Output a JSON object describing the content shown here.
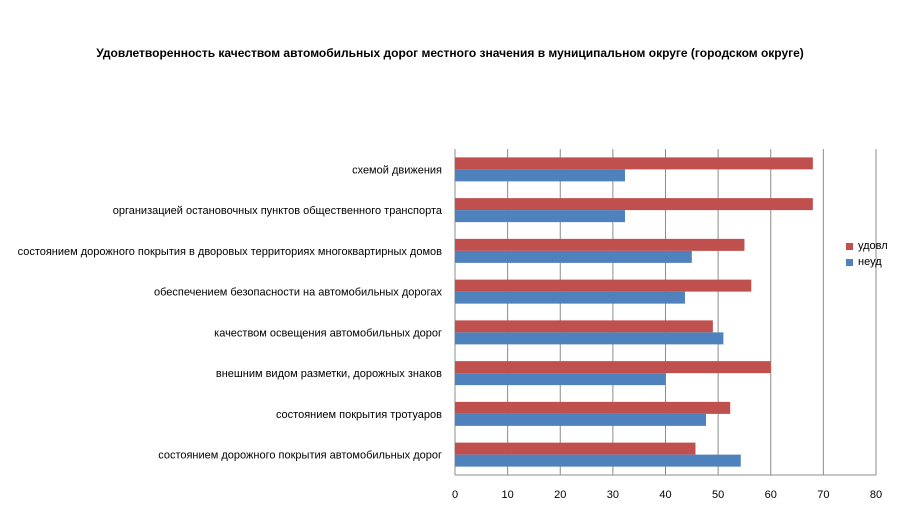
{
  "chart_data": {
    "type": "bar",
    "orientation": "horizontal",
    "title": "Удовлетворенность качеством автомобильных дорог местного значения в муниципальном округе (городском округе)",
    "categories": [
      "схемой движения",
      "организацией остановочных пунктов общественного транспорта",
      "состоянием дорожного покрытия в дворовых территориях многоквартирных домов",
      "обеспечением безопасности на автомобильных дорогах",
      "качеством освещения автомобильных дорог",
      "внешним видом разметки, дорожных знаков",
      "состоянием покрытия тротуаров",
      "состоянием дорожного покрытия автомобильных дорог"
    ],
    "series": [
      {
        "name": "удовл",
        "color": "#c0504d",
        "values": [
          68,
          68,
          55,
          56.3,
          49,
          60,
          52.3,
          45.7
        ]
      },
      {
        "name": "неуд",
        "color": "#4f81bd",
        "values": [
          32.3,
          32.3,
          45,
          43.7,
          51,
          40,
          47.7,
          54.3
        ]
      }
    ],
    "xlim": [
      0,
      80
    ],
    "x_ticks": [
      "0",
      "10",
      "20",
      "30",
      "40",
      "50",
      "60",
      "70",
      "80"
    ],
    "grid": true,
    "legend_position": "right"
  }
}
